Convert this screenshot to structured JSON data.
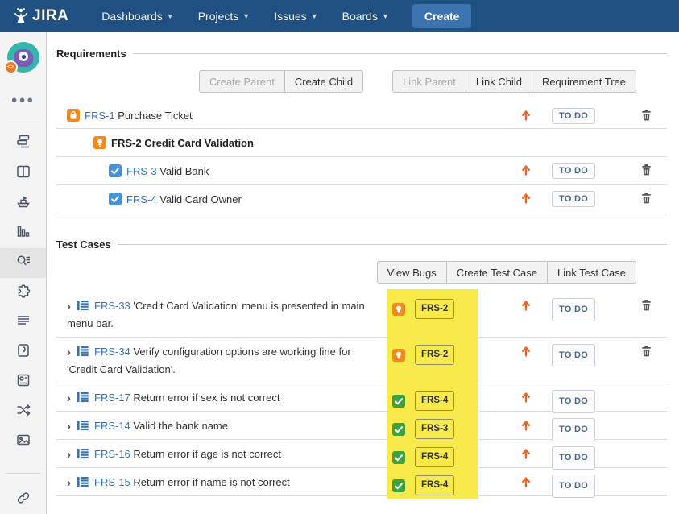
{
  "nav": {
    "logo_text": "JIRA",
    "items": [
      "Dashboards",
      "Projects",
      "Issues",
      "Boards"
    ],
    "create_label": "Create"
  },
  "sidebar": {
    "avatar_badge": "<>",
    "more": "more-ellipsis-icon",
    "items": [
      "queue-icon",
      "board-columns-icon",
      "releases-ship-icon",
      "reports-chart-icon",
      "issues-search-icon",
      "addons-puzzle-icon",
      "summary-lines-icon",
      "journal-icon",
      "contacts-book-icon",
      "shuffle-icon",
      "media-image-icon"
    ],
    "active_item": "issues-search-icon",
    "footer_item": "link-icon"
  },
  "requirements": {
    "title": "Requirements",
    "toolbar": [
      {
        "label": "Create Parent",
        "disabled": true
      },
      {
        "label": "Create Child",
        "disabled": false
      },
      {
        "label": "Link Parent",
        "disabled": true,
        "new_group": true
      },
      {
        "label": "Link Child",
        "disabled": false
      },
      {
        "label": "Requirement Tree",
        "disabled": false
      }
    ],
    "rows": [
      {
        "key": "FRS-1",
        "summary": "Purchase Ticket",
        "type_icon": "requirement-lock-icon",
        "indent": 13,
        "status": "TO DO",
        "trash": true,
        "current": false
      },
      {
        "key": "FRS-2",
        "summary": "Credit Card Validation",
        "type_icon": "bulb-icon",
        "indent": 46,
        "status": "",
        "trash": false,
        "current": true
      },
      {
        "key": "FRS-3",
        "summary": "Valid Bank",
        "type_icon": "subtask-check-icon",
        "indent": 65,
        "status": "TO DO",
        "trash": true,
        "current": false
      },
      {
        "key": "FRS-4",
        "summary": "Valid Card Owner",
        "type_icon": "subtask-check-icon",
        "indent": 65,
        "status": "TO DO",
        "trash": true,
        "current": false
      }
    ]
  },
  "test_cases": {
    "title": "Test Cases",
    "toolbar": [
      {
        "label": "View Bugs",
        "disabled": false
      },
      {
        "label": "Create Test Case",
        "disabled": false
      },
      {
        "label": "Link Test Case",
        "disabled": false
      }
    ],
    "rows": [
      {
        "key": "FRS-33",
        "summary": "'Credit Card Validation' menu is presented in main menu bar.",
        "linked_key": "FRS-2",
        "linked_icon": "bulb-icon",
        "status": "TO DO",
        "trash": true,
        "tall": true
      },
      {
        "key": "FRS-34",
        "summary": "Verify configuration options are working fine for 'Credit Card Validation'.",
        "linked_key": "FRS-2",
        "linked_icon": "bulb-icon",
        "status": "TO DO",
        "trash": true,
        "tall": true
      },
      {
        "key": "FRS-17",
        "summary": "Return error if sex is not correct",
        "linked_key": "FRS-4",
        "linked_icon": "green-check-icon",
        "status": "TO DO",
        "trash": false,
        "tall": false
      },
      {
        "key": "FRS-14",
        "summary": "Valid the bank name",
        "linked_key": "FRS-3",
        "linked_icon": "green-check-icon",
        "status": "TO DO",
        "trash": false,
        "tall": false
      },
      {
        "key": "FRS-16",
        "summary": "Return error if age is not correct",
        "linked_key": "FRS-4",
        "linked_icon": "green-check-icon",
        "status": "TO DO",
        "trash": false,
        "tall": false
      },
      {
        "key": "FRS-15",
        "summary": "Return error if name is not correct",
        "linked_key": "FRS-4",
        "linked_icon": "green-check-icon",
        "status": "TO DO",
        "trash": false,
        "tall": false
      }
    ]
  },
  "colors": {
    "navy": "#205081",
    "button_blue": "#3b73af",
    "link": "#3b73af",
    "orange": "#f6891e",
    "green": "#3ba23f",
    "subtask_blue": "#4592d8",
    "arrow_orange": "#e8661d",
    "highlight": "#f6e83b",
    "status_text": "#4a6785"
  }
}
